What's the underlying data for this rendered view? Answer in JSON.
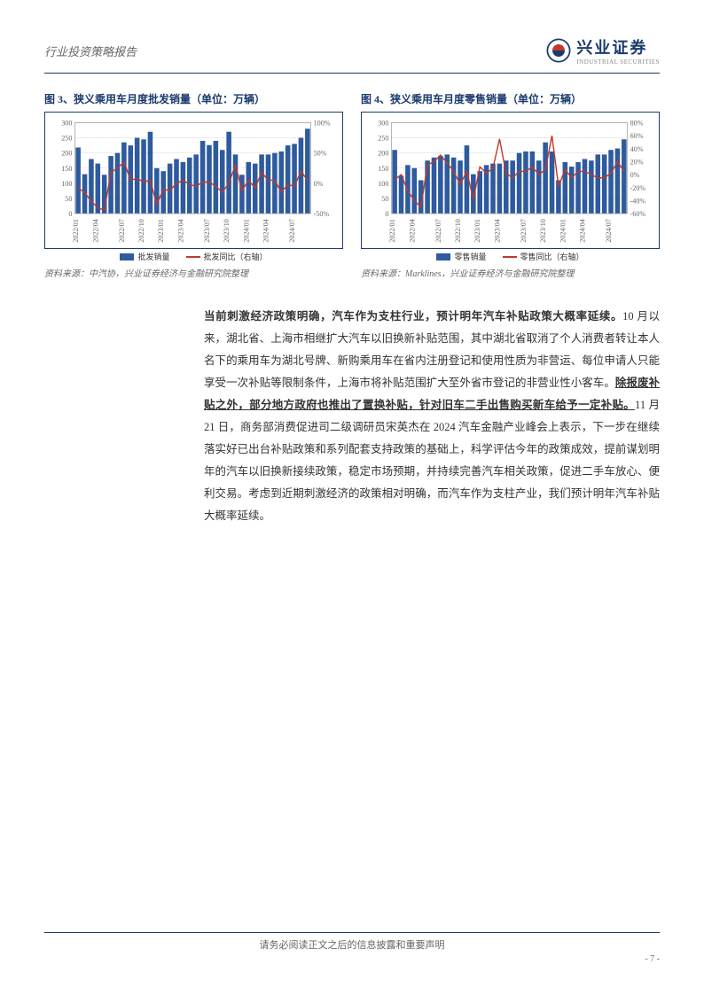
{
  "header": {
    "title": "行业投资策略报告",
    "logo_cn": "兴业证券",
    "logo_en": "INDUSTRIAL SECURITIES"
  },
  "chart_left": {
    "title": "图 3、狭义乘用车月度批发销量（单位：万辆）",
    "type": "bar+line",
    "x_labels": [
      "2022/01",
      "2022/04",
      "2022/07",
      "2022/10",
      "2023/01",
      "2023/04",
      "2023/07",
      "2023/10",
      "2024/01",
      "2024/04",
      "2024/07"
    ],
    "y_left": {
      "min": 0,
      "max": 300,
      "step": 50
    },
    "y_right": {
      "min": -50,
      "max": 100,
      "step": 50,
      "suffix": "%"
    },
    "bar_color": "#2e5a9e",
    "line_color": "#c0392b",
    "grid_color": "#d8d8d8",
    "bars": [
      218,
      130,
      180,
      165,
      128,
      190,
      200,
      235,
      225,
      250,
      245,
      270,
      150,
      140,
      165,
      180,
      170,
      185,
      195,
      240,
      226,
      240,
      210,
      270,
      195,
      128,
      170,
      165,
      195,
      195,
      200,
      205,
      225,
      230,
      250,
      280
    ],
    "line": [
      -8,
      -15,
      -30,
      -40,
      -45,
      18,
      25,
      35,
      5,
      8,
      2,
      5,
      -35,
      -10,
      -12,
      0,
      5,
      -2,
      -5,
      2,
      2,
      -5,
      -15,
      0,
      30,
      -12,
      5,
      -8,
      18,
      5,
      5,
      -15,
      -2,
      -5,
      20,
      5
    ],
    "legend_bar": "批发销量",
    "legend_line": "批发同比（右轴）",
    "source": "资料来源：中汽协，兴业证券经济与金融研究院整理"
  },
  "chart_right": {
    "title": "图 4、狭义乘用车月度零售销量（单位：万辆）",
    "type": "bar+line",
    "x_labels": [
      "2022/01",
      "2022/04",
      "2022/07",
      "2022/10",
      "2023/01",
      "2023/04",
      "2023/07",
      "2023/10",
      "2024/01",
      "2024/04",
      "2024/07"
    ],
    "y_left": {
      "min": 0,
      "max": 300,
      "step": 50
    },
    "y_right": {
      "min": -60,
      "max": 80,
      "step": 20,
      "suffix": "%"
    },
    "bar_color": "#2e5a9e",
    "line_color": "#c0392b",
    "grid_color": "#d8d8d8",
    "bars": [
      210,
      125,
      160,
      150,
      110,
      175,
      185,
      190,
      195,
      185,
      175,
      225,
      130,
      140,
      160,
      165,
      165,
      175,
      175,
      200,
      205,
      205,
      175,
      235,
      205,
      110,
      170,
      155,
      170,
      180,
      175,
      195,
      195,
      210,
      215,
      245
    ],
    "line": [
      -8,
      0,
      -25,
      -40,
      -50,
      15,
      20,
      30,
      18,
      5,
      -15,
      5,
      -38,
      12,
      2,
      10,
      55,
      2,
      -5,
      5,
      5,
      12,
      0,
      8,
      60,
      -18,
      8,
      -5,
      5,
      5,
      0,
      -5,
      -5,
      2,
      20,
      5
    ],
    "legend_bar": "零售销量",
    "legend_line": "零售同比（右轴）",
    "source": "资料来源：Marklines，兴业证券经济与金融研究院整理"
  },
  "paragraph": {
    "p1_bold": "当前刺激经济政策明确，汽车作为支柱行业，预计明年汽车补贴政策大概率延续。",
    "p2": "10 月以来，湖北省、上海市相继扩大汽车以旧换新补贴范围，其中湖北省取消了个人消费者转让本人名下的乘用车为湖北号牌、新购乘用车在省内注册登记和使用性质为非营运、每位申请人只能享受一次补贴等限制条件，上海市将补贴范围扩大至外省市登记的非营业性小客车。",
    "p3_underline": "除报废补贴之外，部分地方政府也推出了置换补贴，针对旧车二手出售购买新车给予一定补贴。",
    "p4": "11 月 21 日，商务部消费促进司二级调研员宋英杰在 2024 汽车金融产业峰会上表示，下一步在继续落实好已出台补贴政策和系列配套支持政策的基础上，科学评估今年的政策成效，提前谋划明年的汽车以旧换新接续政策，稳定市场预期，并持续完善汽车相关政策，促进二手车放心、便利交易。考虑到近期刺激经济的政策相对明确，而汽车作为支柱产业，我们预计明年汽车补贴大概率延续。"
  },
  "footer": {
    "disclaimer": "请务必阅读正文之后的信息披露和重要声明",
    "page": "- 7 -"
  }
}
